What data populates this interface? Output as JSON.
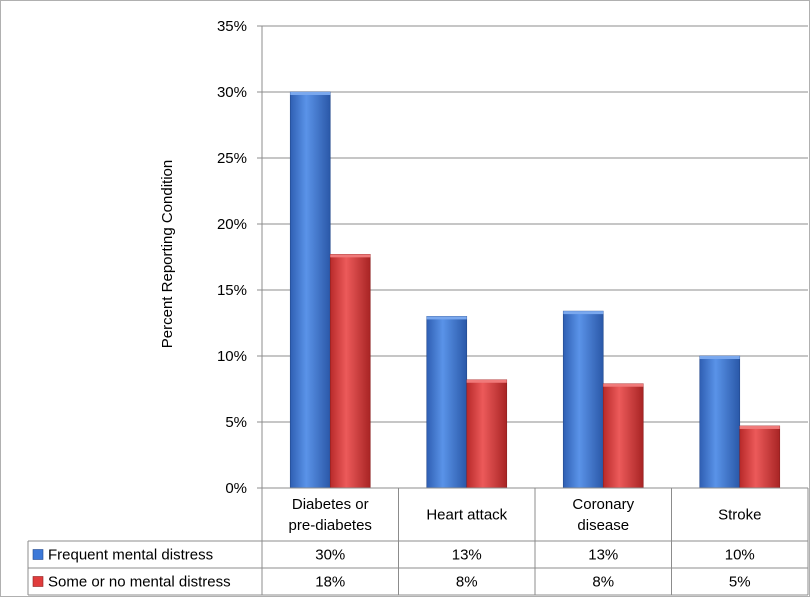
{
  "chart_data": {
    "type": "bar",
    "title": "",
    "xlabel": "",
    "ylabel": "Percent Reporting Condition",
    "ylim": [
      0,
      35
    ],
    "y_ticks": [
      0,
      5,
      10,
      15,
      20,
      25,
      30,
      35
    ],
    "y_tick_labels": [
      "0%",
      "5%",
      "10%",
      "15%",
      "20%",
      "25%",
      "30%",
      "35%"
    ],
    "grid": true,
    "legend": "in data table",
    "categories": [
      [
        "Diabetes or",
        "pre-diabetes"
      ],
      [
        "Heart attack"
      ],
      [
        "Coronary",
        "disease"
      ],
      [
        "Stroke"
      ]
    ],
    "series": [
      {
        "name": "Frequent mental distress",
        "color": "#3c78d8",
        "values": [
          30,
          13,
          13.4,
          10
        ],
        "table_labels": [
          "30%",
          "13%",
          "13%",
          "10%"
        ]
      },
      {
        "name": "Some or no mental distress",
        "color": "#e03c3c",
        "values": [
          17.7,
          8.2,
          7.9,
          4.7
        ],
        "table_labels": [
          "18%",
          "8%",
          "8%",
          "5%"
        ]
      }
    ]
  }
}
